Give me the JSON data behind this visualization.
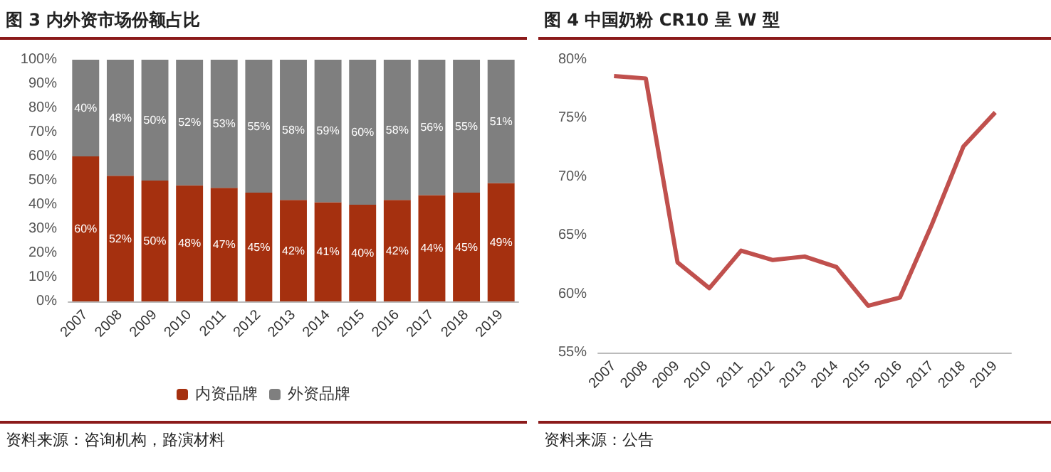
{
  "chart_data": [
    {
      "type": "bar",
      "title": "图 3  内外资市场份额占比",
      "stacked": true,
      "categories": [
        "2007",
        "2008",
        "2009",
        "2010",
        "2011",
        "2012",
        "2013",
        "2014",
        "2015",
        "2016",
        "2017",
        "2018",
        "2019"
      ],
      "series": [
        {
          "name": "内资品牌",
          "color": "#a5300f",
          "values": [
            60,
            52,
            50,
            48,
            47,
            45,
            42,
            41,
            40,
            42,
            44,
            45,
            49
          ],
          "value_labels": [
            "60%",
            "52%",
            "50%",
            "48%",
            "47%",
            "45%",
            "42%",
            "41%",
            "40%",
            "42%",
            "44%",
            "45%",
            "49%"
          ]
        },
        {
          "name": "外资品牌",
          "color": "#7f7f7f",
          "values": [
            40,
            48,
            50,
            52,
            53,
            55,
            58,
            59,
            60,
            58,
            56,
            55,
            51
          ],
          "value_labels": [
            "40%",
            "48%",
            "50%",
            "52%",
            "53%",
            "55%",
            "58%",
            "59%",
            "60%",
            "58%",
            "56%",
            "55%",
            "51%"
          ]
        }
      ],
      "ylim": [
        0,
        100
      ],
      "yticks": [
        {
          "value": 0,
          "label": "0%"
        },
        {
          "value": 10,
          "label": "10%"
        },
        {
          "value": 20,
          "label": "20%"
        },
        {
          "value": 30,
          "label": "30%"
        },
        {
          "value": 40,
          "label": "40%"
        },
        {
          "value": 50,
          "label": "50%"
        },
        {
          "value": 60,
          "label": "60%"
        },
        {
          "value": 70,
          "label": "70%"
        },
        {
          "value": 80,
          "label": "80%"
        },
        {
          "value": 90,
          "label": "90%"
        },
        {
          "value": 100,
          "label": "100%"
        }
      ],
      "grid": false,
      "legend": "bottom",
      "annotations": [
        "资料来源：咨询机构，路演材料"
      ]
    },
    {
      "type": "line",
      "title": "图 4  中国奶粉 CR10 呈 W 型",
      "categories": [
        "2007",
        "2008",
        "2009",
        "2010",
        "2011",
        "2012",
        "2013",
        "2014",
        "2015",
        "2016",
        "2017",
        "2018",
        "2019"
      ],
      "series": [
        {
          "color": "#c0504d",
          "values": [
            78.6,
            78.4,
            62.7,
            60.5,
            63.7,
            62.9,
            63.2,
            62.3,
            59.0,
            59.7,
            65.9,
            72.6,
            75.5
          ]
        }
      ],
      "ylim": [
        55,
        80
      ],
      "yticks": [
        {
          "value": 55,
          "label": "55%"
        },
        {
          "value": 60,
          "label": "60%"
        },
        {
          "value": 65,
          "label": "65%"
        },
        {
          "value": 70,
          "label": "70%"
        },
        {
          "value": 75,
          "label": "75%"
        },
        {
          "value": 80,
          "label": "80%"
        }
      ],
      "grid": false,
      "legend": false,
      "marker": "none",
      "line_style": "solid",
      "annotations": [
        "资料来源：公告"
      ]
    }
  ]
}
